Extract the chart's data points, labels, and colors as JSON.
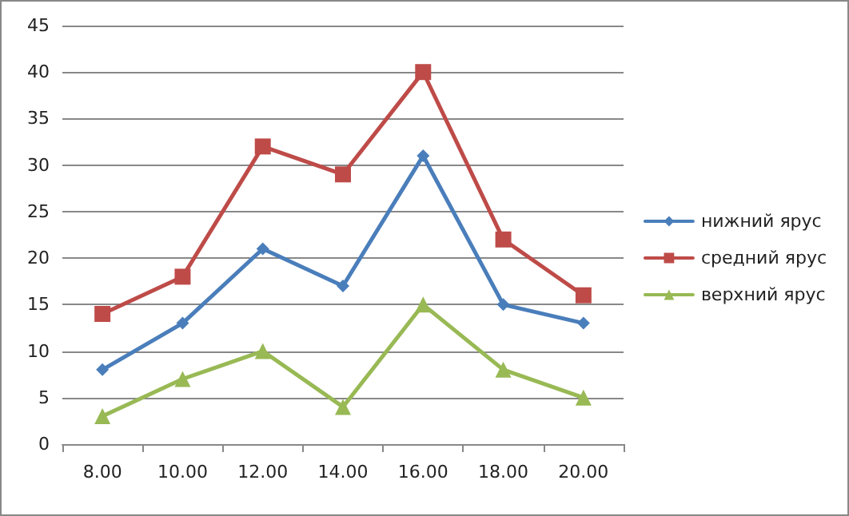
{
  "chart_data": {
    "type": "line",
    "categories": [
      "8.00",
      "10.00",
      "12.00",
      "14.00",
      "16.00",
      "18.00",
      "20.00"
    ],
    "series": [
      {
        "name": "нижний ярус",
        "color": "#4a7ebb",
        "marker": "diamond",
        "values": [
          8,
          13,
          21,
          17,
          31,
          15,
          13
        ]
      },
      {
        "name": "средний ярус",
        "color": "#be4b48",
        "marker": "square",
        "values": [
          14,
          18,
          32,
          29,
          40,
          22,
          16
        ]
      },
      {
        "name": "верхний ярус",
        "color": "#98b954",
        "marker": "triangle",
        "values": [
          3,
          7,
          10,
          4,
          15,
          8,
          5
        ]
      }
    ],
    "ylim": [
      0,
      45
    ],
    "yticks": [
      0,
      5,
      10,
      15,
      20,
      25,
      30,
      35,
      40,
      45
    ],
    "grid": "y",
    "legend": "right",
    "line_style": "solid"
  }
}
